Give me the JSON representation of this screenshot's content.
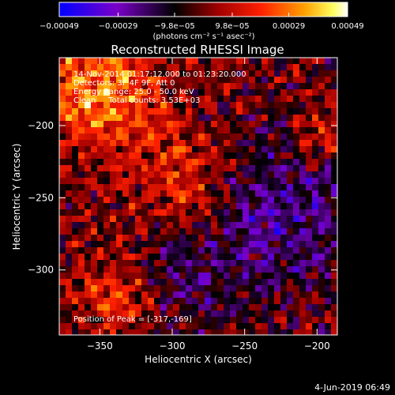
{
  "chart_data": {
    "type": "heatmap",
    "title": "Reconstructed RHESSI Image",
    "xlabel": "Heliocentric X (arcsec)",
    "ylabel": "Heliocentric Y (arcsec)",
    "xlim": [
      -378,
      -186
    ],
    "ylim": [
      -345,
      -153
    ],
    "x_ticks": [
      -350,
      -300,
      -250,
      -200
    ],
    "y_ticks": [
      -300,
      -250,
      -200
    ],
    "x_tick_labels": [
      "−350",
      "−300",
      "−250",
      "−200"
    ],
    "y_tick_labels": [
      "−300",
      "−250",
      "−200"
    ],
    "colorbar": {
      "range": [
        -0.00049,
        0.00049
      ],
      "ticks": [
        -0.00049,
        -0.00029,
        -9.8e-05,
        9.8e-05,
        0.00029,
        0.00049
      ],
      "tick_labels": [
        "−0.00049",
        "−0.00029",
        "−9.8e−05",
        "9.8e−05",
        "0.00029",
        "0.00049"
      ],
      "unit_label": "(photons cm⁻² s⁻¹ asec⁻²)",
      "colormap": [
        "#0000ff",
        "#7a00c8",
        "#000000",
        "#a00000",
        "#ff2000",
        "#ffa000",
        "#ffff60",
        "#ffffff"
      ]
    },
    "annotations": [
      "14-Nov-2014 01:17:12.000 to 01:23:20.000",
      "Detectors: 3F 4F 9F, Att 0",
      "Energy Range: 25.0 - 50.0 keV",
      "Clean     Total counts: 3.53E+03"
    ],
    "peak_label": "Position of Peak = [-317,-169]",
    "peak": [
      -317,
      -169
    ],
    "grid": false
  },
  "footer": {
    "date": "4-Jun-2019 06:49"
  }
}
